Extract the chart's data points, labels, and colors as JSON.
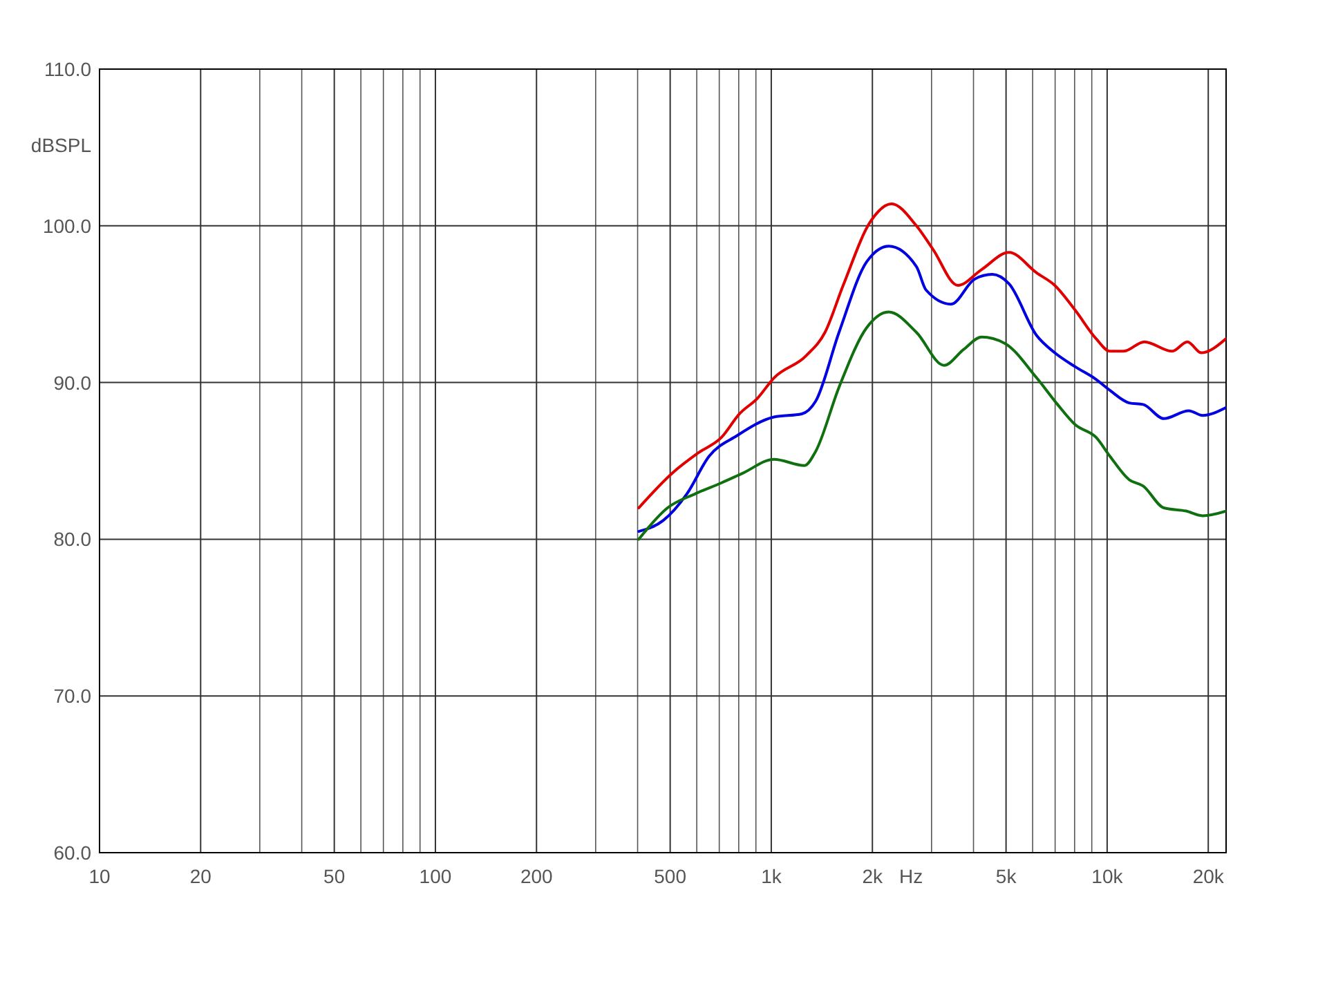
{
  "chart_data": {
    "type": "line",
    "xlabel": "Hz",
    "ylabel": "dBSPL",
    "log": "x",
    "grid": true,
    "line_style": "solid",
    "xlim": [
      10,
      22600
    ],
    "ylim": [
      60,
      110
    ],
    "xticks": [
      {
        "value": 10,
        "label": "10"
      },
      {
        "value": 20,
        "label": "20"
      },
      {
        "value": 30,
        "label": null
      },
      {
        "value": 40,
        "label": null
      },
      {
        "value": 50,
        "label": "50"
      },
      {
        "value": 60,
        "label": null
      },
      {
        "value": 70,
        "label": null
      },
      {
        "value": 80,
        "label": null
      },
      {
        "value": 90,
        "label": null
      },
      {
        "value": 100,
        "label": "100"
      },
      {
        "value": 200,
        "label": "200"
      },
      {
        "value": 300,
        "label": null
      },
      {
        "value": 400,
        "label": null
      },
      {
        "value": 500,
        "label": "500"
      },
      {
        "value": 600,
        "label": null
      },
      {
        "value": 700,
        "label": null
      },
      {
        "value": 800,
        "label": null
      },
      {
        "value": 900,
        "label": null
      },
      {
        "value": 1000,
        "label": "1k"
      },
      {
        "value": 2000,
        "label": "2k"
      },
      {
        "value": 3000,
        "label": null
      },
      {
        "value": 4000,
        "label": null
      },
      {
        "value": 5000,
        "label": "5k"
      },
      {
        "value": 6000,
        "label": null
      },
      {
        "value": 7000,
        "label": null
      },
      {
        "value": 8000,
        "label": null
      },
      {
        "value": 9000,
        "label": null
      },
      {
        "value": 10000,
        "label": "10k"
      },
      {
        "value": 20000,
        "label": "20k"
      }
    ],
    "yticks": [
      {
        "value": 60,
        "label": "60.0"
      },
      {
        "value": 70,
        "label": "70.0"
      },
      {
        "value": 80,
        "label": "80.0"
      },
      {
        "value": 90,
        "label": "90.0"
      },
      {
        "value": 100,
        "label": "100.0"
      },
      {
        "value": 110,
        "label": "110.0"
      }
    ],
    "series": [
      {
        "color": "#e00000",
        "x": [
          403,
          506,
          605,
          711,
          804,
          910,
          1019,
          1268,
          1445,
          1637,
          1978,
          2280,
          2705,
          3030,
          3594,
          4224,
          5102,
          6166,
          6982,
          8043,
          9268,
          10190,
          11200,
          12910,
          15610,
          17340,
          19050,
          22600
        ],
        "values": [
          82.0,
          84.2,
          85.5,
          86.5,
          88.0,
          89.0,
          90.3,
          91.7,
          93.2,
          96.2,
          100.3,
          101.4,
          100.0,
          98.5,
          96.2,
          97.2,
          98.3,
          97.0,
          96.2,
          94.6,
          92.8,
          92.0,
          92.0,
          92.6,
          92.0,
          92.6,
          91.9,
          92.8
        ]
      },
      {
        "color": "#0000e0",
        "x": [
          403,
          477,
          561,
          653,
          789,
          1019,
          1233,
          1355,
          1591,
          1923,
          2238,
          2705,
          2890,
          3428,
          4030,
          4553,
          5102,
          6166,
          6982,
          8043,
          9268,
          10190,
          11630,
          12800,
          14750,
          17500,
          19230,
          22600
        ],
        "values": [
          80.5,
          81.2,
          82.9,
          85.3,
          86.6,
          87.8,
          88.0,
          88.8,
          93.2,
          97.7,
          98.7,
          97.4,
          95.9,
          95.0,
          96.6,
          96.9,
          96.3,
          93.0,
          91.9,
          91.0,
          90.2,
          89.5,
          88.7,
          88.6,
          87.7,
          88.2,
          87.9,
          88.4
        ]
      },
      {
        "color": "#107010",
        "x": [
          403,
          491,
          594,
          711,
          820,
          1019,
          1256,
          1355,
          1591,
          1923,
          2238,
          2705,
          3268,
          3735,
          4224,
          4958,
          6166,
          7117,
          8043,
          9268,
          10190,
          11630,
          12800,
          14750,
          17170,
          19230,
          22600
        ],
        "values": [
          80.0,
          82.0,
          82.9,
          83.6,
          84.2,
          85.1,
          84.7,
          85.6,
          89.7,
          93.5,
          94.5,
          93.2,
          91.1,
          92.1,
          92.9,
          92.5,
          90.3,
          88.6,
          87.3,
          86.5,
          85.3,
          83.8,
          83.4,
          82.0,
          81.8,
          81.5,
          81.8
        ]
      }
    ]
  }
}
